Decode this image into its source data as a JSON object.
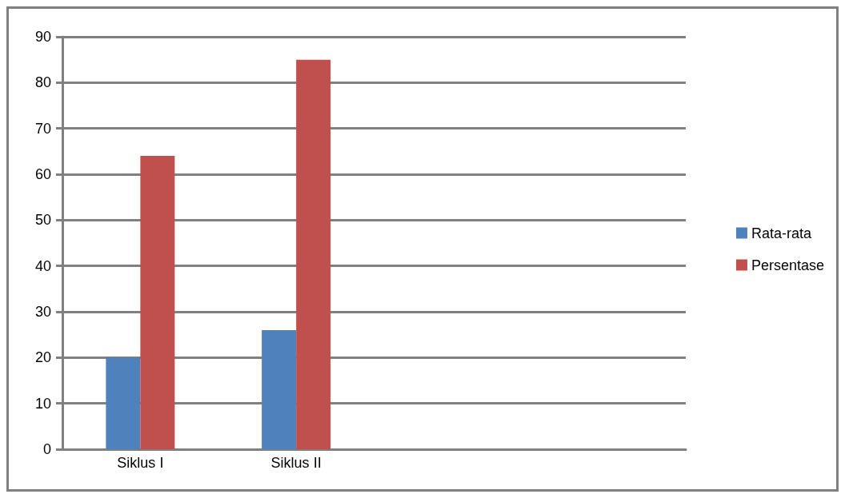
{
  "chart_data": {
    "type": "bar",
    "categories": [
      "Siklus I",
      "Siklus II",
      null,
      null
    ],
    "series": [
      {
        "name": "Rata-rata",
        "color": "#4f81bd",
        "values": [
          20,
          26,
          null,
          null
        ]
      },
      {
        "name": "Persentase",
        "color": "#c0504d",
        "values": [
          64,
          85,
          null,
          null
        ]
      }
    ],
    "ylim": [
      0,
      90
    ],
    "yticks": [
      0,
      10,
      20,
      30,
      40,
      50,
      60,
      70,
      80,
      90
    ],
    "grid": "y",
    "legend": "right"
  }
}
